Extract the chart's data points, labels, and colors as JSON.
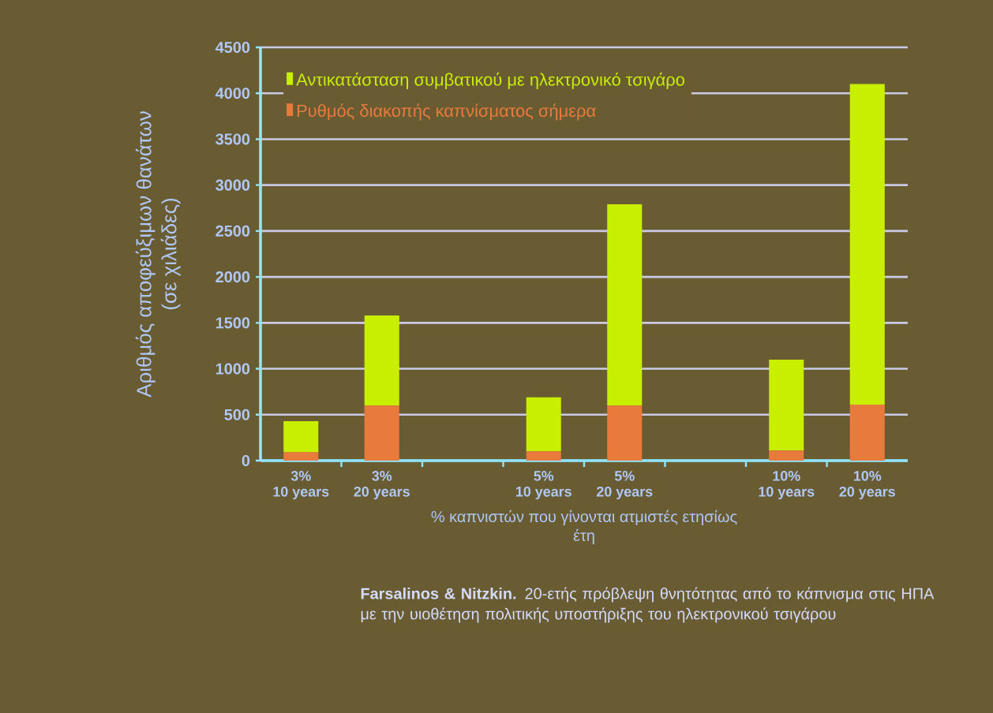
{
  "chart_data": {
    "type": "bar",
    "stacked": true,
    "categories": [
      "3%\n10 years",
      "3%\n20 years",
      null,
      "5%\n10 years",
      "5%\n20 years",
      null,
      "10%\n10 years",
      "10%\n20 years"
    ],
    "series": [
      {
        "name": "Ρυθμός διακοπής καπνίσματος σήμερα",
        "color": "#e87a3c",
        "values": [
          90,
          600,
          null,
          100,
          600,
          null,
          110,
          610
        ]
      },
      {
        "name": "Αντικατάσταση συμβατικού με ηλεκτρονικό τσιγάρο",
        "color": "#c8ee00",
        "values": [
          340,
          980,
          null,
          590,
          2190,
          null,
          990,
          3490
        ]
      }
    ],
    "ylim": [
      0,
      4500
    ],
    "yticks": [
      0,
      500,
      1000,
      1500,
      2000,
      2500,
      3000,
      3500,
      4000,
      4500
    ],
    "xlabel": "% καπνιστών που γίνονται ατμιστές ετησίως\nέτη",
    "ylabel": "Αριθμός αποφεύξιμων θανάτων\n(σε χιλιάδες)",
    "annotations": [
      "**Farsalinos & Nitzkin.** 20-ετής πρόβλεψη θνητότητας από το κάπνισμα στις ΗΠΑ με την υιοθέτηση πολιτικής υποστήριξης του ηλεκτρονικού τσιγάρου"
    ],
    "grid": "y",
    "legend": "top left"
  }
}
